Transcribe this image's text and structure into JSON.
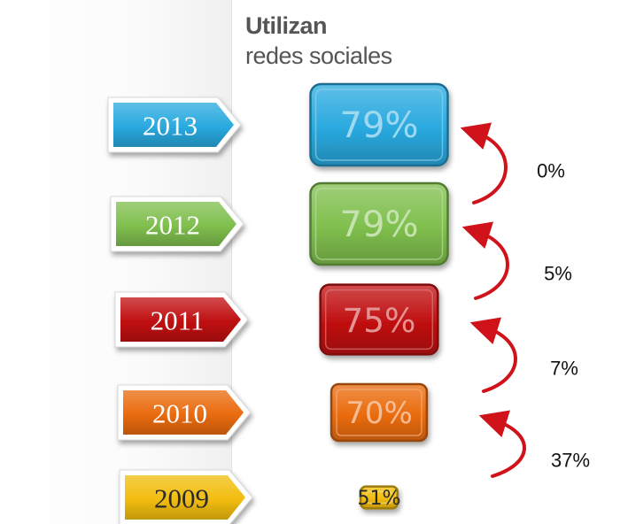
{
  "chart_data": {
    "type": "bar",
    "title": "Utilizan",
    "subtitle": "redes sociales",
    "categories": [
      "2013",
      "2012",
      "2011",
      "2010",
      "2009"
    ],
    "values": [
      79,
      79,
      75,
      70,
      51
    ],
    "value_labels": [
      "79%",
      "79%",
      "75%",
      "70%",
      "51%"
    ],
    "changes": [
      "0%",
      "5%",
      "7%",
      "37%"
    ],
    "colors": [
      "#29a9df",
      "#7fbf4d",
      "#c00f10",
      "#ea6b0e",
      "#f2bd0e"
    ]
  }
}
